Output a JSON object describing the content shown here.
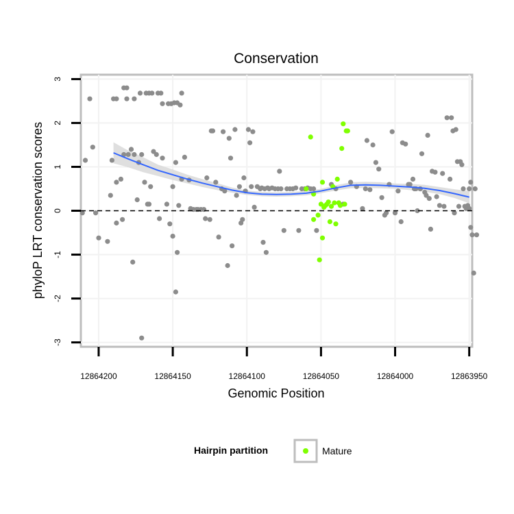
{
  "chart_data": {
    "type": "scatter",
    "title": "Conservation",
    "xlabel": "Genomic Position",
    "ylabel": "phyloP LRT conservation scores",
    "x_reversed": true,
    "xlim": [
      12864212,
      12863948
    ],
    "ylim": [
      -3.1,
      3.1
    ],
    "x_ticks": [
      12864200,
      12864150,
      12864100,
      12864050,
      12864000,
      12863950
    ],
    "x_tick_labels": [
      "12864200",
      "12864150",
      "12864100",
      "12864050",
      "12864000",
      "12863950"
    ],
    "y_ticks": [
      -3,
      -2,
      -1,
      0,
      1,
      2,
      3
    ],
    "y_tick_labels": [
      "-3",
      "-2",
      "-1",
      "0",
      "1",
      "2",
      "3"
    ],
    "grid": true,
    "reference_line": {
      "y": 0,
      "style": "dashed"
    },
    "legend": {
      "title": "Hairpin partition",
      "position": "bottom",
      "entries": [
        {
          "label": "Mature",
          "color": "#7fff00"
        }
      ]
    },
    "colors": {
      "background": "#ffffff",
      "grid": "#f2f2f2",
      "border": "#bdbdbd",
      "point": "#8c8c8c",
      "mature": "#7fff00",
      "smooth": "#3366ff",
      "ribbon": "#d9d9d9"
    },
    "series": [
      {
        "name": "Hairpin",
        "color": "#8c8c8c",
        "points": [
          [
            12864190,
            2.55
          ],
          [
            12864188,
            2.55
          ],
          [
            12864183,
            2.8
          ],
          [
            12864181,
            2.8
          ],
          [
            12864181,
            2.55
          ],
          [
            12864176,
            2.55
          ],
          [
            12864172,
            2.68
          ],
          [
            12864168,
            2.68
          ],
          [
            12864166,
            2.68
          ],
          [
            12864164,
            2.68
          ],
          [
            12864160,
            2.68
          ],
          [
            12864158,
            2.68
          ],
          [
            12864157,
            2.44
          ],
          [
            12864153,
            2.44
          ],
          [
            12864151,
            2.44
          ],
          [
            12864149,
            2.46
          ],
          [
            12864147,
            2.46
          ],
          [
            12864145,
            2.41
          ],
          [
            12864144,
            2.68
          ],
          [
            12864191,
            1.15
          ],
          [
            12864188,
            0.65
          ],
          [
            12864185,
            0.72
          ],
          [
            12864183,
            1.28
          ],
          [
            12864180,
            1.28
          ],
          [
            12864178,
            1.4
          ],
          [
            12864176,
            1.28
          ],
          [
            12864174,
            0.25
          ],
          [
            12864173,
            1.1
          ],
          [
            12864171,
            1.28
          ],
          [
            12864169,
            0.65
          ],
          [
            12864167,
            0.15
          ],
          [
            12864166,
            0.15
          ],
          [
            12864165,
            0.55
          ],
          [
            12864163,
            1.35
          ],
          [
            12864161,
            1.28
          ],
          [
            12864159,
            -0.18
          ],
          [
            12864157,
            1.2
          ],
          [
            12864154,
            0.15
          ],
          [
            12864152,
            -0.3
          ],
          [
            12864150,
            0.55
          ],
          [
            12864148,
            1.1
          ],
          [
            12864146,
            0.12
          ],
          [
            12864144,
            0.72
          ],
          [
            12864142,
            1.22
          ],
          [
            12864139,
            0.7
          ],
          [
            12864138,
            0.05
          ],
          [
            12864136,
            0.03
          ],
          [
            12864134,
            0.03
          ],
          [
            12864133,
            0.03
          ],
          [
            12864131,
            0.03
          ],
          [
            12864129,
            0.03
          ],
          [
            12864128,
            -0.18
          ],
          [
            12864127,
            0.75
          ],
          [
            12864125,
            -0.2
          ],
          [
            12864124,
            1.82
          ],
          [
            12864123,
            1.82
          ],
          [
            12864121,
            0.65
          ],
          [
            12864119,
            -0.6
          ],
          [
            12864117,
            0.5
          ],
          [
            12864116,
            1.8
          ],
          [
            12864115,
            0.45
          ],
          [
            12864113,
            -1.25
          ],
          [
            12864112,
            1.65
          ],
          [
            12864111,
            1.2
          ],
          [
            12864110,
            -0.8
          ],
          [
            12864108,
            1.85
          ],
          [
            12864107,
            0.35
          ],
          [
            12864105,
            0.55
          ],
          [
            12864104,
            -0.28
          ],
          [
            12864103,
            -0.2
          ],
          [
            12864102,
            0.75
          ],
          [
            12864101,
            0.45
          ],
          [
            12864099,
            1.85
          ],
          [
            12864098,
            1.55
          ],
          [
            12864097,
            0.55
          ],
          [
            12864096,
            1.8
          ],
          [
            12864095,
            0.08
          ],
          [
            12864093,
            0.55
          ],
          [
            12864091,
            0.5
          ],
          [
            12864090,
            0.52
          ],
          [
            12864089,
            -0.72
          ],
          [
            12864088,
            0.5
          ],
          [
            12864087,
            -0.95
          ],
          [
            12864086,
            0.52
          ],
          [
            12864085,
            0.5
          ],
          [
            12864083,
            0.52
          ],
          [
            12864081,
            0.5
          ],
          [
            12864079,
            0.5
          ],
          [
            12864078,
            0.9
          ],
          [
            12864077,
            0.5
          ],
          [
            12864075,
            -0.45
          ],
          [
            12864073,
            0.5
          ],
          [
            12864071,
            0.5
          ],
          [
            12864069,
            0.5
          ],
          [
            12864067,
            0.52
          ],
          [
            12864065,
            -0.45
          ],
          [
            12864063,
            0.5
          ],
          [
            12864061,
            0.5
          ],
          [
            12864059,
            0.52
          ],
          [
            12864057,
            0.5
          ],
          [
            12864055,
            0.5
          ],
          [
            12864053,
            -0.45
          ],
          [
            12864043,
            0.6
          ],
          [
            12864040,
            0.5
          ],
          [
            12864038,
            0.18
          ],
          [
            12864035,
            0.15
          ],
          [
            12864030,
            0.65
          ],
          [
            12864026,
            0.55
          ],
          [
            12864022,
            0.05
          ],
          [
            12864020,
            0.5
          ],
          [
            12864019,
            1.6
          ],
          [
            12864017,
            0.48
          ],
          [
            12864015,
            1.5
          ],
          [
            12864013,
            1.1
          ],
          [
            12864011,
            0.95
          ],
          [
            12864009,
            0.3
          ],
          [
            12864007,
            -0.1
          ],
          [
            12864006,
            -0.05
          ],
          [
            12864004,
            0.6
          ],
          [
            12864002,
            1.8
          ],
          [
            12864000,
            -0.05
          ],
          [
            12863998,
            0.45
          ],
          [
            12863996,
            -0.25
          ],
          [
            12863995,
            1.55
          ],
          [
            12863993,
            1.52
          ],
          [
            12863991,
            0.6
          ],
          [
            12863990,
            0.6
          ],
          [
            12863988,
            0.72
          ],
          [
            12863987,
            0.5
          ],
          [
            12863986,
            0.5
          ],
          [
            12863985,
            0.0
          ],
          [
            12863983,
            0.5
          ],
          [
            12863982,
            1.3
          ],
          [
            12863980,
            0.42
          ],
          [
            12863979,
            0.35
          ],
          [
            12863978,
            1.72
          ],
          [
            12863977,
            0.28
          ],
          [
            12863976,
            -0.42
          ],
          [
            12863975,
            0.9
          ],
          [
            12863973,
            0.88
          ],
          [
            12863972,
            0.32
          ],
          [
            12863970,
            0.12
          ],
          [
            12863968,
            0.85
          ],
          [
            12863967,
            0.1
          ],
          [
            12863965,
            2.12
          ],
          [
            12863963,
            0.72
          ],
          [
            12863962,
            2.12
          ],
          [
            12863961,
            1.82
          ],
          [
            12863960,
            -0.05
          ],
          [
            12863959,
            1.85
          ],
          [
            12863958,
            1.12
          ],
          [
            12863957,
            0.1
          ],
          [
            12863956,
            1.12
          ],
          [
            12863955,
            1.05
          ],
          [
            12863954,
            0.5
          ],
          [
            12863953,
            0.1
          ],
          [
            12863952,
            0.05
          ],
          [
            12863951,
            0.12
          ],
          [
            12863950,
            0.05
          ],
          [
            12863949,
            0.65
          ],
          [
            12864211,
            -0.05
          ],
          [
            12864209,
            1.15
          ],
          [
            12864206,
            2.55
          ],
          [
            12864204,
            1.45
          ],
          [
            12864202,
            -0.05
          ],
          [
            12864200,
            -0.62
          ],
          [
            12864194,
            -0.7
          ],
          [
            12864192,
            0.35
          ],
          [
            12864188,
            -0.28
          ],
          [
            12864184,
            -0.2
          ],
          [
            12864177,
            -1.17
          ],
          [
            12864171,
            -2.9
          ],
          [
            12864150,
            -0.58
          ],
          [
            12864148,
            -1.85
          ],
          [
            12864147,
            -0.95
          ],
          [
            12863950,
            0.5
          ],
          [
            12863949,
            -0.38
          ],
          [
            12863948,
            -0.55
          ],
          [
            12863947,
            -1.42
          ],
          [
            12863946,
            0.5
          ],
          [
            12863945,
            -0.55
          ]
        ]
      },
      {
        "name": "Mature",
        "color": "#7fff00",
        "points": [
          [
            12864060,
            0.5
          ],
          [
            12864057,
            1.68
          ],
          [
            12864055,
            0.38
          ],
          [
            12864055,
            -0.2
          ],
          [
            12864052,
            -0.1
          ],
          [
            12864051,
            -1.12
          ],
          [
            12864050,
            0.15
          ],
          [
            12864049,
            -0.62
          ],
          [
            12864049,
            0.65
          ],
          [
            12864048,
            0.08
          ],
          [
            12864047,
            0.12
          ],
          [
            12864046,
            0.15
          ],
          [
            12864045,
            0.2
          ],
          [
            12864044,
            -0.25
          ],
          [
            12864043,
            0.1
          ],
          [
            12864042,
            0.55
          ],
          [
            12864041,
            0.18
          ],
          [
            12864040,
            -0.3
          ],
          [
            12864039,
            0.72
          ],
          [
            12864038,
            0.18
          ],
          [
            12864037,
            0.12
          ],
          [
            12864036,
            1.42
          ],
          [
            12864035,
            1.98
          ],
          [
            12864034,
            0.15
          ],
          [
            12864033,
            1.82
          ],
          [
            12864032,
            1.82
          ]
        ]
      }
    ],
    "smooth": {
      "method": "loess",
      "color": "#3366ff",
      "x": [
        12864190,
        12864180,
        12864170,
        12864160,
        12864150,
        12864140,
        12864130,
        12864120,
        12864110,
        12864100,
        12864090,
        12864080,
        12864070,
        12864060,
        12864050,
        12864040,
        12864030,
        12864020,
        12864010,
        12864000,
        12863990,
        12863980,
        12863970,
        12863960,
        12863950
      ],
      "y": [
        1.32,
        1.18,
        1.05,
        0.92,
        0.82,
        0.72,
        0.63,
        0.55,
        0.47,
        0.41,
        0.38,
        0.37,
        0.38,
        0.4,
        0.45,
        0.52,
        0.58,
        0.59,
        0.58,
        0.56,
        0.54,
        0.51,
        0.46,
        0.39,
        0.31
      ],
      "lower": [
        1.08,
        0.99,
        0.88,
        0.79,
        0.7,
        0.62,
        0.54,
        0.47,
        0.41,
        0.36,
        0.33,
        0.32,
        0.33,
        0.35,
        0.4,
        0.46,
        0.51,
        0.52,
        0.51,
        0.5,
        0.47,
        0.43,
        0.38,
        0.29,
        0.17
      ],
      "upper": [
        1.56,
        1.37,
        1.22,
        1.05,
        0.94,
        0.82,
        0.72,
        0.63,
        0.53,
        0.46,
        0.43,
        0.42,
        0.43,
        0.45,
        0.5,
        0.58,
        0.65,
        0.66,
        0.65,
        0.62,
        0.61,
        0.59,
        0.54,
        0.49,
        0.45
      ]
    }
  }
}
